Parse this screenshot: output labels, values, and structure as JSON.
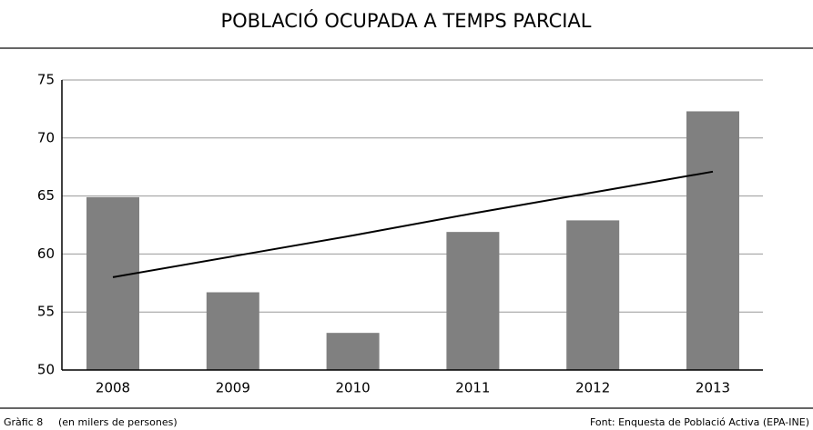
{
  "chart_data": {
    "type": "bar",
    "title": "POBLACIÓ OCUPADA A TEMPS PARCIAL",
    "categories": [
      "2008",
      "2009",
      "2010",
      "2011",
      "2012",
      "2013"
    ],
    "values": [
      64.9,
      56.7,
      53.2,
      61.9,
      62.9,
      72.3
    ],
    "color": "#808080",
    "trend": {
      "color": "#000000",
      "values": [
        58.0,
        59.8,
        61.6,
        63.5,
        65.3,
        67.1
      ]
    },
    "ylim": [
      50,
      75
    ],
    "yticks": [
      50,
      55,
      60,
      65,
      70,
      75
    ],
    "grid": true,
    "figure_label": "Gràfic 8",
    "unit_note": "(en milers de persones)",
    "source": "Font: Enquesta de Població Activa (EPA-INE)"
  }
}
